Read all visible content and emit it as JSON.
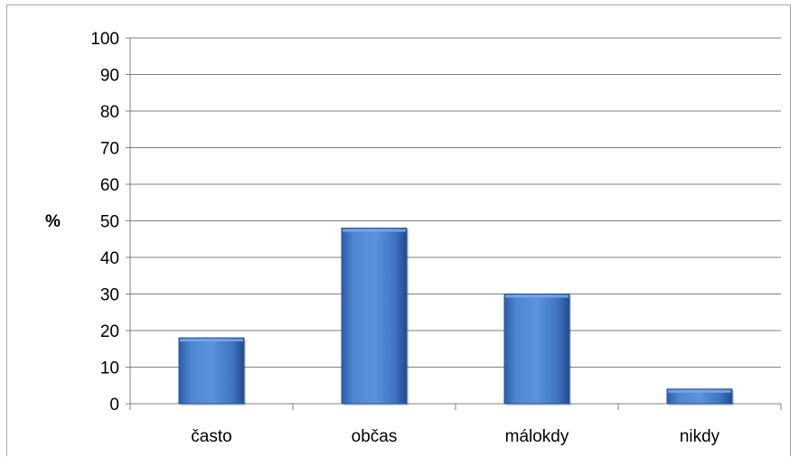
{
  "chart_data": {
    "type": "bar",
    "title": "",
    "xlabel": "",
    "ylabel": "%",
    "categories": [
      "často",
      "občas",
      "málokdy",
      "nikdy"
    ],
    "values": [
      18,
      48,
      30,
      4
    ],
    "ylim": [
      0,
      100
    ],
    "yticks": [
      "0",
      "10",
      "20",
      "30",
      "40",
      "50",
      "60",
      "70",
      "80",
      "90",
      "100"
    ],
    "grid": true,
    "legend": "none",
    "colors": {
      "bar_light": "#5b8fd6",
      "bar_mid": "#3c6fbf",
      "bar_dark": "#254f94",
      "bar_top": "#7aa7e4",
      "gridline": "#7f7f7f",
      "axis": "#7f7f7f"
    }
  }
}
